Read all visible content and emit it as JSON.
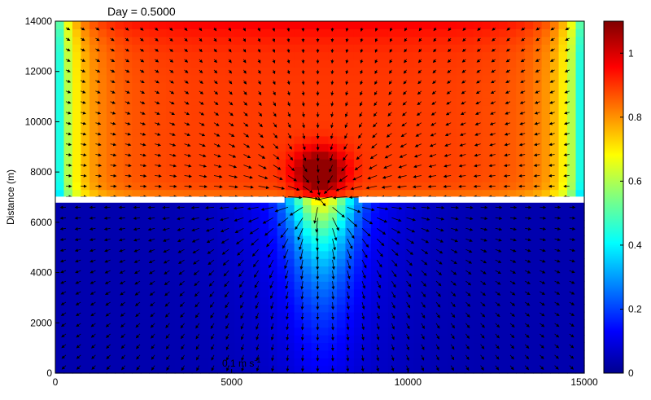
{
  "chart_data": {
    "type": "heatmap",
    "title": "Day = 0.5000",
    "ylabel": "Distance (m)",
    "xlabel": "",
    "xlim": [
      0,
      15000
    ],
    "ylim": [
      0,
      14000
    ],
    "x_ticks": [
      0,
      5000,
      10000,
      15000
    ],
    "y_ticks": [
      0,
      2000,
      4000,
      6000,
      8000,
      10000,
      12000,
      14000
    ],
    "x_tick_labels": [
      "0",
      "5000",
      "10000",
      "15000"
    ],
    "y_tick_labels": [
      "0",
      "2000",
      "4000",
      "6000",
      "8000",
      "10000",
      "12000",
      "14000"
    ],
    "colorbar": {
      "range": [
        0,
        1.1
      ],
      "ticks": [
        0,
        0.2,
        0.4,
        0.6,
        0.8,
        1
      ],
      "tick_labels": [
        "0",
        "0.2",
        "0.4",
        "0.6",
        "0.8",
        "1"
      ],
      "colormap": "jet"
    },
    "barrier": {
      "y": 6900,
      "segments": [
        [
          0,
          6500
        ],
        [
          8600,
          15000
        ]
      ],
      "gap": [
        6500,
        8600
      ]
    },
    "field_summary": {
      "upper_basin_value": 0.9,
      "lower_basin_value": 0.05,
      "peak_value": 1.08,
      "peak_location": [
        7500,
        8000
      ]
    },
    "vector_scale": {
      "label": "0.1 m s",
      "superscript": "-1",
      "position": [
        4500,
        200
      ]
    },
    "grid": false
  }
}
